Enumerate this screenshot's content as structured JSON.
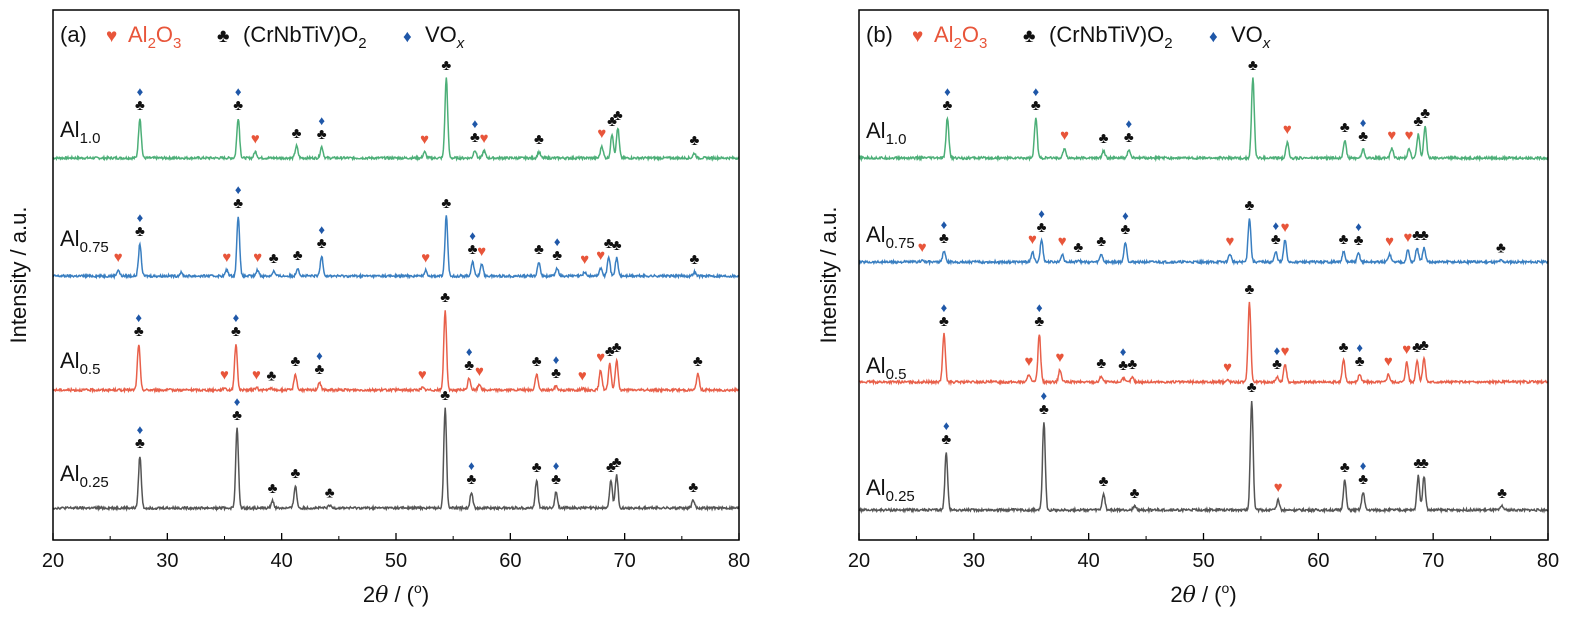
{
  "colors": {
    "Al1.0": "#4daf78",
    "Al0.75": "#3a7fc1",
    "Al0.5": "#e8604a",
    "Al0.25": "#555555",
    "al2o3": "#e8553a",
    "phase": "#111111",
    "vox": "#1f57a8"
  },
  "legend": {
    "heart_glyph": "♥",
    "club_glyph": "♣",
    "diamond_glyph": "♦",
    "al2o3_main": "Al",
    "al2o3_sub1": "2",
    "al2o3_mid": "O",
    "al2o3_sub2": "3",
    "phase_main": "(CrNbTiV)O",
    "phase_sub": "2",
    "vox_main": "VO",
    "vox_sub": "x"
  },
  "series_labels": {
    "Al1.0": {
      "main": "Al",
      "sub": "1.0"
    },
    "Al0.75": {
      "main": "Al",
      "sub": "0.75"
    },
    "Al0.5": {
      "main": "Al",
      "sub": "0.5"
    },
    "Al0.25": {
      "main": "Al",
      "sub": "0.25"
    }
  },
  "chart_data": [
    {
      "type": "line",
      "panel_label": "(a)",
      "xlabel_main": "2",
      "xlabel_theta": "θ",
      "xlabel_unit": " / (",
      "xlabel_sup": "o",
      "xlabel_close": ")",
      "ylabel": "Intensity / a.u.",
      "xlim": [
        20,
        80
      ],
      "xticks": [
        20,
        30,
        40,
        50,
        60,
        70,
        80
      ],
      "tick_labels": [
        "20",
        "30",
        "40",
        "50",
        "60",
        "70",
        "80"
      ],
      "grid": false,
      "legend_placement": "top-left",
      "series": [
        {
          "name": "Al1.0",
          "baseline": 0.0,
          "peaks": [
            [
              27.6,
              1.0,
              "C",
              true
            ],
            [
              36.2,
              1.0,
              "C",
              true
            ],
            [
              37.7,
              0.16,
              "H",
              false
            ],
            [
              41.3,
              0.3,
              "C",
              false
            ],
            [
              43.5,
              0.28,
              "C",
              true
            ],
            [
              52.5,
              0.15,
              "H",
              false
            ],
            [
              54.4,
              2.0,
              "C",
              false
            ],
            [
              56.9,
              0.2,
              "C",
              true
            ],
            [
              57.7,
              0.18,
              "H",
              false
            ],
            [
              62.5,
              0.15,
              "C",
              false
            ],
            [
              68.0,
              0.3,
              "H",
              false
            ],
            [
              68.9,
              0.6,
              "C",
              false
            ],
            [
              69.4,
              0.75,
              "C",
              false
            ],
            [
              76.1,
              0.12,
              "C",
              false
            ]
          ]
        },
        {
          "name": "Al0.75",
          "baseline": 0.0,
          "peaks": [
            [
              25.7,
              0.15,
              "H",
              false
            ],
            [
              27.6,
              0.8,
              "C",
              true
            ],
            [
              31.2,
              0.08,
              "",
              false
            ],
            [
              35.2,
              0.15,
              "H",
              false
            ],
            [
              36.2,
              1.5,
              "C",
              true
            ],
            [
              37.9,
              0.15,
              "H",
              false
            ],
            [
              39.3,
              0.12,
              "C",
              false
            ],
            [
              41.4,
              0.2,
              "C",
              false
            ],
            [
              43.5,
              0.5,
              "C",
              true
            ],
            [
              52.6,
              0.14,
              "H",
              false
            ],
            [
              54.4,
              1.5,
              "C",
              false
            ],
            [
              56.7,
              0.35,
              "C",
              true
            ],
            [
              57.5,
              0.3,
              "H",
              false
            ],
            [
              62.5,
              0.35,
              "C",
              false
            ],
            [
              64.1,
              0.2,
              "C",
              true
            ],
            [
              66.5,
              0.1,
              "H",
              false
            ],
            [
              67.9,
              0.2,
              "H",
              false
            ],
            [
              68.6,
              0.5,
              "C",
              false
            ],
            [
              69.3,
              0.45,
              "C",
              false
            ],
            [
              76.1,
              0.1,
              "C",
              false
            ]
          ]
        },
        {
          "name": "Al0.5",
          "baseline": 0.0,
          "peaks": [
            [
              27.5,
              1.15,
              "C",
              true
            ],
            [
              35.0,
              0.06,
              "H",
              false
            ],
            [
              36.0,
              1.15,
              "C",
              true
            ],
            [
              37.8,
              0.06,
              "H",
              false
            ],
            [
              39.1,
              0.04,
              "C",
              false
            ],
            [
              41.2,
              0.4,
              "C",
              false
            ],
            [
              43.3,
              0.2,
              "C",
              true
            ],
            [
              52.3,
              0.06,
              "H",
              false
            ],
            [
              54.3,
              2.0,
              "C",
              false
            ],
            [
              56.4,
              0.3,
              "C",
              true
            ],
            [
              57.3,
              0.15,
              "H",
              false
            ],
            [
              62.3,
              0.4,
              "C",
              false
            ],
            [
              64.0,
              0.1,
              "C",
              true
            ],
            [
              66.3,
              0.04,
              "H",
              false
            ],
            [
              67.9,
              0.5,
              "H",
              false
            ],
            [
              68.7,
              0.65,
              "C",
              false
            ],
            [
              69.3,
              0.75,
              "C",
              false
            ],
            [
              76.4,
              0.4,
              "C",
              false
            ]
          ]
        },
        {
          "name": "Al0.25",
          "baseline": 0.0,
          "peaks": [
            [
              27.6,
              1.3,
              "C",
              true
            ],
            [
              36.1,
              2.0,
              "C",
              true
            ],
            [
              39.2,
              0.18,
              "C",
              false
            ],
            [
              41.2,
              0.55,
              "C",
              false
            ],
            [
              44.2,
              0.06,
              "C",
              false
            ],
            [
              54.3,
              2.5,
              "C",
              false
            ],
            [
              56.6,
              0.4,
              "C",
              true
            ],
            [
              62.3,
              0.7,
              "C",
              false
            ],
            [
              64.0,
              0.4,
              "C",
              true
            ],
            [
              68.8,
              0.7,
              "C",
              false
            ],
            [
              69.3,
              0.82,
              "C",
              false
            ],
            [
              76.0,
              0.2,
              "C",
              false
            ]
          ]
        }
      ]
    },
    {
      "type": "line",
      "panel_label": "(b)",
      "xlabel_main": "2",
      "xlabel_theta": "θ",
      "xlabel_unit": " / (",
      "xlabel_sup": "o",
      "xlabel_close": ")",
      "ylabel": "Intensity / a.u.",
      "xlim": [
        20,
        80
      ],
      "xticks": [
        20,
        30,
        40,
        50,
        60,
        70,
        80
      ],
      "tick_labels": [
        "20",
        "30",
        "40",
        "50",
        "60",
        "70",
        "80"
      ],
      "grid": false,
      "legend_placement": "top-left",
      "series": [
        {
          "name": "Al1.0",
          "baseline": 0.0,
          "peaks": [
            [
              27.7,
              1.0,
              "C",
              true
            ],
            [
              35.4,
              1.0,
              "C",
              true
            ],
            [
              37.9,
              0.25,
              "H",
              false
            ],
            [
              41.3,
              0.18,
              "C",
              false
            ],
            [
              43.5,
              0.2,
              "C",
              true
            ],
            [
              54.3,
              2.0,
              "C",
              false
            ],
            [
              57.3,
              0.4,
              "H",
              false
            ],
            [
              62.3,
              0.45,
              "C",
              false
            ],
            [
              63.9,
              0.22,
              "C",
              true
            ],
            [
              66.4,
              0.25,
              "H",
              false
            ],
            [
              67.9,
              0.25,
              "H",
              false
            ],
            [
              68.7,
              0.6,
              "C",
              false
            ],
            [
              69.3,
              0.8,
              "C",
              false
            ]
          ]
        },
        {
          "name": "Al0.75",
          "baseline": 0.0,
          "peaks": [
            [
              25.5,
              0.05,
              "H",
              false
            ],
            [
              27.4,
              0.27,
              "C",
              true
            ],
            [
              35.1,
              0.25,
              "H",
              false
            ],
            [
              35.9,
              0.55,
              "C",
              true
            ],
            [
              37.7,
              0.2,
              "H",
              false
            ],
            [
              39.1,
              0.05,
              "C",
              false
            ],
            [
              41.1,
              0.2,
              "C",
              false
            ],
            [
              43.2,
              0.5,
              "C",
              true
            ],
            [
              52.3,
              0.2,
              "H",
              false
            ],
            [
              54.0,
              1.1,
              "C",
              false
            ],
            [
              56.3,
              0.25,
              "C",
              true
            ],
            [
              57.1,
              0.55,
              "H",
              false
            ],
            [
              62.2,
              0.25,
              "C",
              false
            ],
            [
              63.5,
              0.22,
              "C",
              true
            ],
            [
              66.2,
              0.2,
              "H",
              false
            ],
            [
              67.8,
              0.3,
              "H",
              false
            ],
            [
              68.6,
              0.35,
              "C",
              false
            ],
            [
              69.2,
              0.35,
              "C",
              false
            ],
            [
              75.9,
              0.04,
              "C",
              false
            ]
          ]
        },
        {
          "name": "Al0.5",
          "baseline": 0.0,
          "peaks": [
            [
              27.4,
              1.2,
              "C",
              true
            ],
            [
              34.8,
              0.2,
              "H",
              false
            ],
            [
              35.7,
              1.2,
              "C",
              true
            ],
            [
              37.5,
              0.3,
              "H",
              false
            ],
            [
              41.1,
              0.15,
              "C",
              false
            ],
            [
              43.0,
              0.1,
              "C",
              true
            ],
            [
              43.8,
              0.12,
              "C",
              false
            ],
            [
              52.1,
              0.05,
              "H",
              false
            ],
            [
              54.0,
              2.0,
              "C",
              false
            ],
            [
              56.4,
              0.12,
              "C",
              true
            ],
            [
              57.1,
              0.45,
              "H",
              false
            ],
            [
              62.2,
              0.55,
              "C",
              false
            ],
            [
              63.6,
              0.2,
              "C",
              true
            ],
            [
              66.1,
              0.2,
              "H",
              false
            ],
            [
              67.7,
              0.5,
              "H",
              false
            ],
            [
              68.6,
              0.55,
              "C",
              false
            ],
            [
              69.2,
              0.6,
              "C",
              false
            ]
          ]
        },
        {
          "name": "Al0.25",
          "baseline": 0.0,
          "peaks": [
            [
              27.6,
              1.45,
              "C",
              true
            ],
            [
              36.1,
              2.2,
              "C",
              true
            ],
            [
              41.3,
              0.4,
              "C",
              false
            ],
            [
              44.0,
              0.1,
              "C",
              false
            ],
            [
              54.2,
              2.75,
              "C",
              false
            ],
            [
              56.5,
              0.25,
              "H",
              false
            ],
            [
              62.3,
              0.75,
              "C",
              false
            ],
            [
              63.9,
              0.45,
              "C",
              true
            ],
            [
              68.7,
              0.85,
              "C",
              false
            ],
            [
              69.2,
              0.85,
              "C",
              false
            ],
            [
              76.0,
              0.1,
              "C",
              false
            ]
          ]
        }
      ]
    }
  ]
}
